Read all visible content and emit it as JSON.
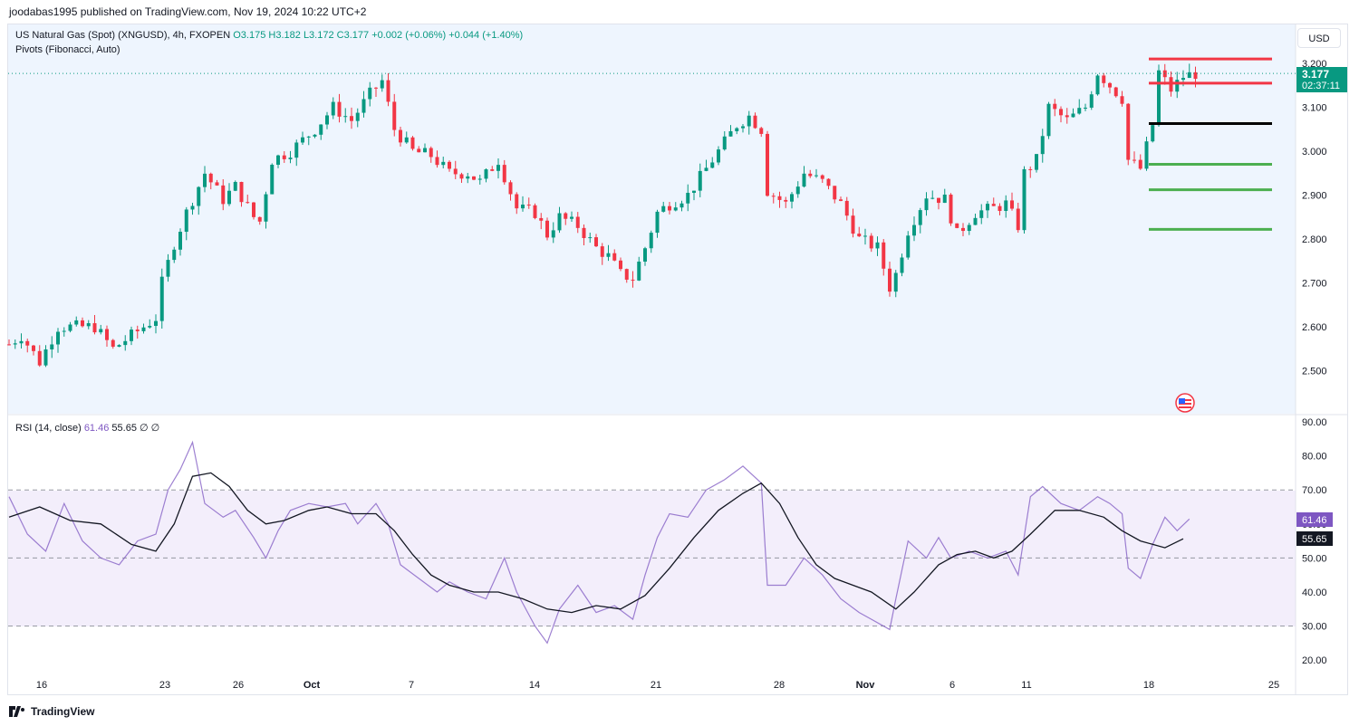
{
  "header": {
    "text": "joodabas1995 published on TradingView.com, Nov 19, 2024 10:22 UTC+2"
  },
  "symbol": {
    "name": "US Natural Gas (Spot) (XNGUSD), 4h, FXOPEN",
    "open": "O3.175",
    "high": "H3.182",
    "low": "L3.172",
    "close": "C3.177",
    "change": "+0.002 (+0.06%)",
    "change2": "+0.044 (+1.40%)",
    "indicator": "Pivots (Fibonacci, Auto)"
  },
  "rsi_legend": {
    "label": "RSI (14, close)",
    "rsi": "61.46",
    "ma": "55.65",
    "extra": "∅ ∅"
  },
  "currency": "USD",
  "price_tag": {
    "price": "3.177",
    "countdown": "02:37:11"
  },
  "rsi_tags": {
    "rsi": "61.46",
    "ma": "55.65"
  },
  "colors": {
    "up": "#089981",
    "down": "#f23645",
    "rsi": "#7e57c2",
    "ma": "#131722",
    "price_bg": "#eef5fe",
    "rsi_band": "#f3eefb",
    "pivot_r": "#f23645",
    "pivot_p": "#000000",
    "pivot_s": "#4caf50"
  },
  "footer": {
    "brand": "TradingView"
  },
  "icons": {
    "flag": "us-flag-icon",
    "logo": "tradingview-logo-icon"
  },
  "chart_data": [
    {
      "type": "candlestick",
      "title": "US Natural Gas (Spot) (XNGUSD), 4h, FXOPEN",
      "x_ticks": [
        "16",
        "23",
        "26",
        "Oct",
        "7",
        "14",
        "21",
        "28",
        "Nov",
        "6",
        "11",
        "18",
        "25"
      ],
      "y_ticks": [
        "3.200",
        "3.100",
        "3.000",
        "2.900",
        "2.800",
        "2.700",
        "2.600",
        "2.500"
      ],
      "ylim": [
        2.43,
        3.3
      ],
      "last_price": 3.177,
      "close_path": [
        [
          0,
          2.56
        ],
        [
          2,
          2.58
        ],
        [
          5,
          2.52
        ],
        [
          8,
          2.6
        ],
        [
          11,
          2.6
        ],
        [
          14,
          2.6
        ],
        [
          17,
          2.55
        ],
        [
          20,
          2.58
        ],
        [
          24,
          2.62
        ],
        [
          25,
          2.7
        ],
        [
          27,
          2.79
        ],
        [
          29,
          2.86
        ],
        [
          32,
          2.95
        ],
        [
          35,
          2.89
        ],
        [
          37,
          2.92
        ],
        [
          40,
          2.85
        ],
        [
          41,
          2.84
        ],
        [
          43,
          2.98
        ],
        [
          46,
          3.0
        ],
        [
          50,
          3.05
        ],
        [
          53,
          3.1
        ],
        [
          56,
          3.07
        ],
        [
          59,
          3.13
        ],
        [
          61,
          3.16
        ],
        [
          63,
          3.05
        ],
        [
          66,
          3.0
        ],
        [
          69,
          2.99
        ],
        [
          72,
          2.95
        ],
        [
          75,
          2.95
        ],
        [
          77,
          2.93
        ],
        [
          80,
          2.98
        ],
        [
          83,
          2.87
        ],
        [
          86,
          2.86
        ],
        [
          88,
          2.81
        ],
        [
          90,
          2.85
        ],
        [
          93,
          2.83
        ],
        [
          96,
          2.78
        ],
        [
          98,
          2.76
        ],
        [
          100,
          2.72
        ],
        [
          102,
          2.71
        ],
        [
          104,
          2.78
        ],
        [
          106,
          2.86
        ],
        [
          108,
          2.88
        ],
        [
          111,
          2.9
        ],
        [
          114,
          2.96
        ],
        [
          117,
          3.02
        ],
        [
          119,
          3.06
        ],
        [
          121,
          3.08
        ],
        [
          123,
          3.05
        ],
        [
          124,
          2.91
        ],
        [
          127,
          2.88
        ],
        [
          130,
          2.95
        ],
        [
          133,
          2.93
        ],
        [
          136,
          2.88
        ],
        [
          139,
          2.8
        ],
        [
          142,
          2.78
        ],
        [
          144,
          2.69
        ],
        [
          145,
          2.72
        ],
        [
          147,
          2.82
        ],
        [
          150,
          2.9
        ],
        [
          153,
          2.89
        ],
        [
          155,
          2.81
        ],
        [
          158,
          2.86
        ],
        [
          161,
          2.87
        ],
        [
          163,
          2.88
        ],
        [
          165,
          2.83
        ],
        [
          166,
          2.95
        ],
        [
          168,
          2.98
        ],
        [
          170,
          3.1
        ],
        [
          173,
          3.07
        ],
        [
          176,
          3.1
        ],
        [
          178,
          3.18
        ],
        [
          180,
          3.15
        ],
        [
          182,
          3.12
        ],
        [
          183,
          2.98
        ],
        [
          185,
          2.96
        ],
        [
          187,
          3.06
        ],
        [
          188,
          3.18
        ],
        [
          190,
          3.14
        ],
        [
          192,
          3.17
        ],
        [
          194,
          3.177
        ]
      ],
      "pivots": [
        {
          "level": "R3",
          "price": 3.21,
          "color": "#f23645"
        },
        {
          "level": "R2",
          "price": 3.155,
          "color": "#f23645"
        },
        {
          "level": "P",
          "price": 3.063,
          "color": "#000000"
        },
        {
          "level": "S1",
          "price": 2.97,
          "color": "#4caf50"
        },
        {
          "level": "S2",
          "price": 2.912,
          "color": "#4caf50"
        },
        {
          "level": "S3",
          "price": 2.822,
          "color": "#4caf50"
        }
      ]
    },
    {
      "type": "line",
      "title": "RSI (14, close)",
      "y_ticks": [
        "90.00",
        "80.00",
        "70.00",
        "60.00",
        "50.00",
        "40.00",
        "30.00",
        "20.00"
      ],
      "ylim": [
        17,
        91
      ],
      "bands": [
        30,
        50,
        70
      ],
      "series": [
        {
          "name": "RSI",
          "values": [
            [
              0,
              68
            ],
            [
              3,
              57
            ],
            [
              6,
              52
            ],
            [
              9,
              66
            ],
            [
              12,
              55
            ],
            [
              15,
              50
            ],
            [
              18,
              48
            ],
            [
              21,
              55
            ],
            [
              24,
              57
            ],
            [
              26,
              70
            ],
            [
              28,
              76
            ],
            [
              30,
              84
            ],
            [
              32,
              66
            ],
            [
              35,
              62
            ],
            [
              37,
              64
            ],
            [
              40,
              56
            ],
            [
              42,
              50
            ],
            [
              44,
              58
            ],
            [
              46,
              64
            ],
            [
              49,
              66
            ],
            [
              52,
              65
            ],
            [
              55,
              66
            ],
            [
              57,
              60
            ],
            [
              60,
              66
            ],
            [
              62,
              60
            ],
            [
              64,
              48
            ],
            [
              67,
              44
            ],
            [
              70,
              40
            ],
            [
              72,
              43
            ],
            [
              75,
              40
            ],
            [
              78,
              38
            ],
            [
              81,
              50
            ],
            [
              83,
              40
            ],
            [
              86,
              30
            ],
            [
              88,
              25
            ],
            [
              90,
              35
            ],
            [
              93,
              42
            ],
            [
              96,
              34
            ],
            [
              99,
              36
            ],
            [
              102,
              32
            ],
            [
              104,
              45
            ],
            [
              106,
              56
            ],
            [
              108,
              63
            ],
            [
              111,
              62
            ],
            [
              114,
              70
            ],
            [
              117,
              73
            ],
            [
              120,
              77
            ],
            [
              123,
              72
            ],
            [
              124,
              42
            ],
            [
              127,
              42
            ],
            [
              130,
              50
            ],
            [
              133,
              45
            ],
            [
              136,
              38
            ],
            [
              139,
              34
            ],
            [
              141,
              32
            ],
            [
              144,
              29
            ],
            [
              145,
              38
            ],
            [
              147,
              55
            ],
            [
              150,
              50
            ],
            [
              152,
              56
            ],
            [
              154,
              50
            ],
            [
              157,
              52
            ],
            [
              160,
              50
            ],
            [
              163,
              52
            ],
            [
              165,
              45
            ],
            [
              167,
              68
            ],
            [
              169,
              71
            ],
            [
              172,
              66
            ],
            [
              175,
              64
            ],
            [
              178,
              68
            ],
            [
              180,
              66
            ],
            [
              182,
              63
            ],
            [
              183,
              47
            ],
            [
              185,
              44
            ],
            [
              187,
              54
            ],
            [
              189,
              62
            ],
            [
              191,
              58
            ],
            [
              193,
              61.46
            ]
          ]
        },
        {
          "name": "RSI-based MA",
          "values": [
            [
              0,
              62
            ],
            [
              5,
              65
            ],
            [
              10,
              61
            ],
            [
              15,
              60
            ],
            [
              20,
              54
            ],
            [
              24,
              52
            ],
            [
              27,
              60
            ],
            [
              30,
              74
            ],
            [
              33,
              75
            ],
            [
              36,
              71
            ],
            [
              39,
              64
            ],
            [
              42,
              60
            ],
            [
              45,
              61
            ],
            [
              49,
              64
            ],
            [
              52,
              65
            ],
            [
              56,
              63
            ],
            [
              60,
              63
            ],
            [
              63,
              58
            ],
            [
              66,
              51
            ],
            [
              69,
              45
            ],
            [
              72,
              42
            ],
            [
              76,
              40
            ],
            [
              80,
              40
            ],
            [
              84,
              38
            ],
            [
              88,
              35
            ],
            [
              92,
              34
            ],
            [
              96,
              36
            ],
            [
              100,
              35
            ],
            [
              104,
              39
            ],
            [
              108,
              47
            ],
            [
              112,
              56
            ],
            [
              116,
              64
            ],
            [
              120,
              69
            ],
            [
              123,
              72
            ],
            [
              126,
              66
            ],
            [
              129,
              56
            ],
            [
              132,
              48
            ],
            [
              135,
              44
            ],
            [
              138,
              42
            ],
            [
              141,
              40
            ],
            [
              145,
              35
            ],
            [
              148,
              40
            ],
            [
              152,
              48
            ],
            [
              155,
              51
            ],
            [
              158,
              52
            ],
            [
              161,
              50
            ],
            [
              164,
              52
            ],
            [
              167,
              57
            ],
            [
              171,
              64
            ],
            [
              175,
              64
            ],
            [
              179,
              62
            ],
            [
              182,
              58
            ],
            [
              185,
              55
            ],
            [
              189,
              53
            ],
            [
              192,
              55.65
            ]
          ]
        }
      ]
    }
  ]
}
